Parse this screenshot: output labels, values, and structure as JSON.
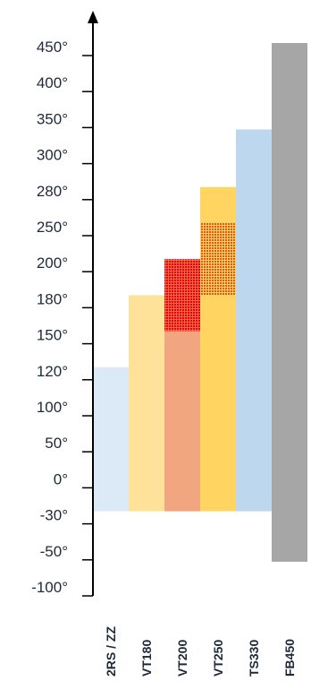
{
  "chart_data": {
    "type": "bar",
    "y_scale": "ordinal",
    "y_ticks": [
      "450°",
      "400°",
      "350°",
      "300°",
      "280°",
      "250°",
      "200°",
      "180°",
      "150°",
      "120°",
      "100°",
      "50°",
      "0°",
      "-30°",
      "-50°",
      "-100°"
    ],
    "categories": [
      "2RS / ZZ",
      "VT180",
      "VT200",
      "VT250",
      "TS330",
      "FB450"
    ],
    "ranges": [
      {
        "category": "2RS / ZZ",
        "low": "-30°",
        "high": "120°",
        "color": "#dce9f6"
      },
      {
        "category": "VT180",
        "low": "-30°",
        "high": "180°",
        "color": "#ffe29a"
      },
      {
        "category": "VT200",
        "low": "-30°",
        "high": "150°",
        "color": "#f2a67f"
      },
      {
        "category": "VT250",
        "low": "-30°",
        "high": "280°",
        "color": "#ffd460"
      },
      {
        "category": "TS330",
        "low": "-30°",
        "high": "330°",
        "color": "#bdd7ee"
      },
      {
        "category": "FB450",
        "low": "-70°",
        "high": "450°",
        "color": "#a6a6a6"
      }
    ],
    "peak_ranges": [
      {
        "category": "VT200",
        "low": "150°",
        "high": "200°",
        "color": "#e8001a",
        "pattern": "dotted"
      },
      {
        "category": "VT250",
        "low": "180°",
        "high": "250°",
        "color": "#e8541a",
        "pattern": "dotted"
      }
    ],
    "title": "",
    "xlabel": "",
    "ylabel": "",
    "grid": false,
    "legend": "none"
  }
}
